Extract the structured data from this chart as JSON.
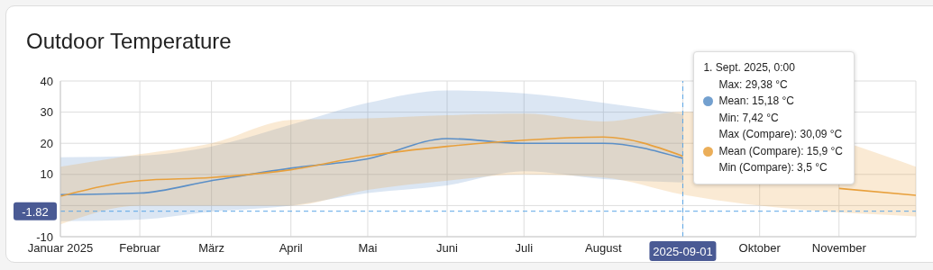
{
  "chart_data": {
    "type": "line",
    "title": "Outdoor Temperature",
    "x": [
      "2025-01",
      "2025-02",
      "2025-03",
      "2025-04",
      "2025-05",
      "2025-06",
      "2025-07",
      "2025-08",
      "2025-09",
      "2025-10",
      "2025-11",
      "2025-12"
    ],
    "series": [
      {
        "color": "#5b8fc7",
        "values": [
          3.5,
          4,
          8,
          12,
          15,
          21.5,
          20,
          20,
          15.18,
          null,
          null,
          null
        ],
        "lower": [
          -5,
          -4.5,
          -2,
          0,
          4,
          6.5,
          11,
          8.5,
          7.42,
          null,
          null,
          null
        ],
        "upper": [
          15.5,
          16,
          19,
          26,
          33,
          37,
          36,
          33,
          29.38,
          null,
          null,
          null
        ]
      },
      {
        "color": "#e8a03c",
        "values": [
          3,
          8,
          9,
          11.5,
          16,
          19,
          21,
          22,
          15.9,
          null,
          5.5,
          3.3
        ],
        "lower": [
          -6,
          0,
          0,
          0,
          5,
          8,
          10,
          9,
          3.5,
          null,
          null,
          -3.5
        ],
        "upper": [
          12.5,
          16.5,
          20,
          27.5,
          28,
          29,
          29.5,
          27,
          30.09,
          null,
          null,
          12.5
        ]
      }
    ],
    "xlim": [
      "2025-01",
      "2025-12"
    ],
    "xticks": [
      {
        "value": "2025-01",
        "label": "Januar 2025"
      },
      {
        "value": "2025-02",
        "label": "Februar"
      },
      {
        "value": "2025-03",
        "label": "März"
      },
      {
        "value": "2025-04",
        "label": "April"
      },
      {
        "value": "2025-05",
        "label": "Mai"
      },
      {
        "value": "2025-06",
        "label": "Juni"
      },
      {
        "value": "2025-07",
        "label": "Juli"
      },
      {
        "value": "2025-08",
        "label": "August"
      },
      {
        "value": "2025-09",
        "label": null
      },
      {
        "value": "2025-10",
        "label": "Oktober"
      },
      {
        "value": "2025-11",
        "label": "November"
      }
    ],
    "ylim": [
      -10,
      40
    ],
    "yticks": [
      -10,
      {
        "value": 0,
        "label": null
      },
      10,
      20,
      30,
      40
    ],
    "grid": true,
    "marker": "none",
    "ref_lines": [
      {
        "axis": "y",
        "value": -1.82,
        "label": "-1.82",
        "color": "#5aa5e6",
        "line_style": "dashed"
      },
      {
        "axis": "x",
        "value": "2025-09-01",
        "label": "2025-09-01",
        "color": "#5aa5e6",
        "line_style": "dashed"
      }
    ],
    "annotations": [
      "1. Sept. 2025, 0:00",
      "Max: 29,38 °C",
      "Mean: 15,18 °C",
      "Min: 7,42 °C",
      "Max (Compare): 30,09 °C",
      "Mean (Compare): 15,9 °C",
      "Min (Compare): 3,5 °C"
    ]
  }
}
